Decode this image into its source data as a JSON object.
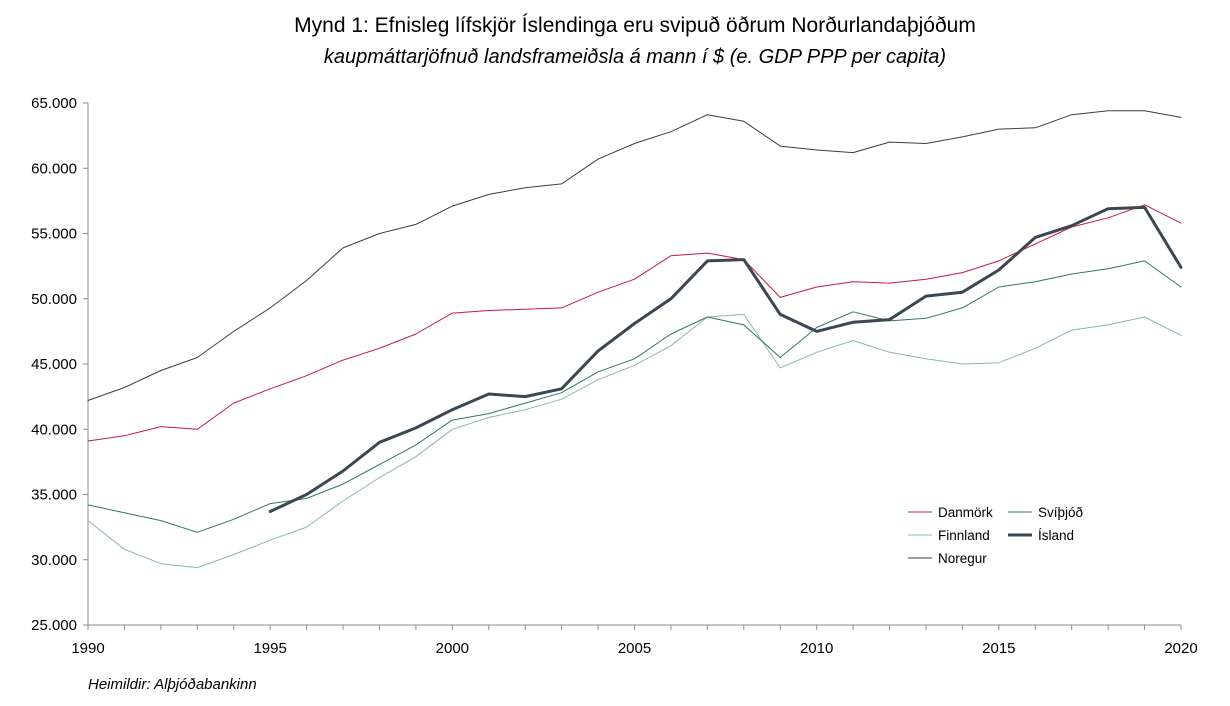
{
  "chart_data": {
    "type": "line",
    "title": "Mynd 1: Efnisleg lífskjör Íslendinga eru svipuð öðrum Norðurlandaþjóðum",
    "subtitle": "kaupmáttarjöfnuð landsframeiðsla á mann í $ (e. GDP PPP per capita)",
    "source": "Heimildir: Alþjóðabankinn",
    "xlim": [
      1990,
      2020
    ],
    "ylim": [
      25000,
      65000
    ],
    "x_ticks": [
      1990,
      1995,
      2000,
      2005,
      2010,
      2015,
      2020
    ],
    "x_tick_labels": [
      "1990",
      "1995",
      "2000",
      "2005",
      "2010",
      "2015",
      "2020"
    ],
    "y_ticks": [
      25000,
      30000,
      35000,
      40000,
      45000,
      50000,
      55000,
      60000,
      65000
    ],
    "y_tick_labels": [
      "25.000",
      "30.000",
      "35.000",
      "40.000",
      "45.000",
      "50.000",
      "55.000",
      "60.000",
      "65.000"
    ],
    "grid": false,
    "legend_position": "bottom-right",
    "series": [
      {
        "name": "Danmörk",
        "color": "#c8184a",
        "width": 1.0,
        "x": [
          1990,
          1991,
          1992,
          1993,
          1994,
          1995,
          1996,
          1997,
          1998,
          1999,
          2000,
          2001,
          2002,
          2003,
          2004,
          2005,
          2006,
          2007,
          2008,
          2009,
          2010,
          2011,
          2012,
          2013,
          2014,
          2015,
          2016,
          2017,
          2018,
          2019,
          2020
        ],
        "values": [
          39100,
          39500,
          40200,
          40000,
          42000,
          43100,
          44100,
          45300,
          46200,
          47300,
          48900,
          49100,
          49200,
          49300,
          50500,
          51500,
          53300,
          53500,
          53000,
          50100,
          50900,
          51300,
          51200,
          51500,
          52000,
          52900,
          54200,
          55500,
          56200,
          57200,
          55800
        ]
      },
      {
        "name": "Svíþjóð",
        "color": "#2d7a5f",
        "width": 1.0,
        "x": [
          1990,
          1991,
          1992,
          1993,
          1994,
          1995,
          1996,
          1997,
          1998,
          1999,
          2000,
          2001,
          2002,
          2003,
          2004,
          2005,
          2006,
          2007,
          2008,
          2009,
          2010,
          2011,
          2012,
          2013,
          2014,
          2015,
          2016,
          2017,
          2018,
          2019,
          2020
        ],
        "values": [
          34200,
          33600,
          33000,
          32100,
          33100,
          34300,
          34700,
          35800,
          37300,
          38800,
          40700,
          41200,
          42000,
          42800,
          44400,
          45400,
          47300,
          48600,
          48000,
          45500,
          47800,
          49000,
          48300,
          48500,
          49300,
          50900,
          51300,
          51900,
          52300,
          52900,
          50900
        ]
      },
      {
        "name": "Finnland",
        "color": "#8ab8a8",
        "width": 1.0,
        "x": [
          1990,
          1991,
          1992,
          1993,
          1994,
          1995,
          1996,
          1997,
          1998,
          1999,
          2000,
          2001,
          2002,
          2003,
          2004,
          2005,
          2006,
          2007,
          2008,
          2009,
          2010,
          2011,
          2012,
          2013,
          2014,
          2015,
          2016,
          2017,
          2018,
          2019,
          2020
        ],
        "values": [
          33000,
          30800,
          29700,
          29400,
          30400,
          31500,
          32500,
          34500,
          36300,
          37900,
          40000,
          40900,
          41500,
          42300,
          43800,
          44900,
          46400,
          48600,
          48800,
          44700,
          45900,
          46800,
          45900,
          45400,
          45000,
          45100,
          46200,
          47600,
          48000,
          48600,
          47200
        ]
      },
      {
        "name": "Ísland",
        "color": "#3b4752",
        "width": 3.0,
        "x": [
          1995,
          1996,
          1997,
          1998,
          1999,
          2000,
          2001,
          2002,
          2003,
          2004,
          2005,
          2006,
          2007,
          2008,
          2009,
          2010,
          2011,
          2012,
          2013,
          2014,
          2015,
          2016,
          2017,
          2018,
          2019,
          2020
        ],
        "values": [
          33700,
          35000,
          36800,
          39000,
          40100,
          41500,
          42700,
          42500,
          43100,
          46000,
          48100,
          50000,
          52900,
          53000,
          48800,
          47500,
          48200,
          48400,
          50200,
          50500,
          52200,
          54700,
          55600,
          56900,
          57000,
          52400
        ]
      },
      {
        "name": "Noregur",
        "color": "#33443c",
        "width": 1.0,
        "x": [
          1990,
          1991,
          1992,
          1993,
          1994,
          1995,
          1996,
          1997,
          1998,
          1999,
          2000,
          2001,
          2002,
          2003,
          2004,
          2005,
          2006,
          2007,
          2008,
          2009,
          2010,
          2011,
          2012,
          2013,
          2014,
          2015,
          2016,
          2017,
          2018,
          2019,
          2020
        ],
        "values": [
          42200,
          43200,
          44500,
          45500,
          47500,
          49300,
          51400,
          53900,
          55000,
          55700,
          57100,
          58000,
          58500,
          58800,
          60700,
          61900,
          62800,
          64100,
          63600,
          61700,
          61400,
          61200,
          62000,
          61900,
          62400,
          63000,
          63100,
          64100,
          64400,
          64400,
          63900
        ]
      }
    ]
  }
}
